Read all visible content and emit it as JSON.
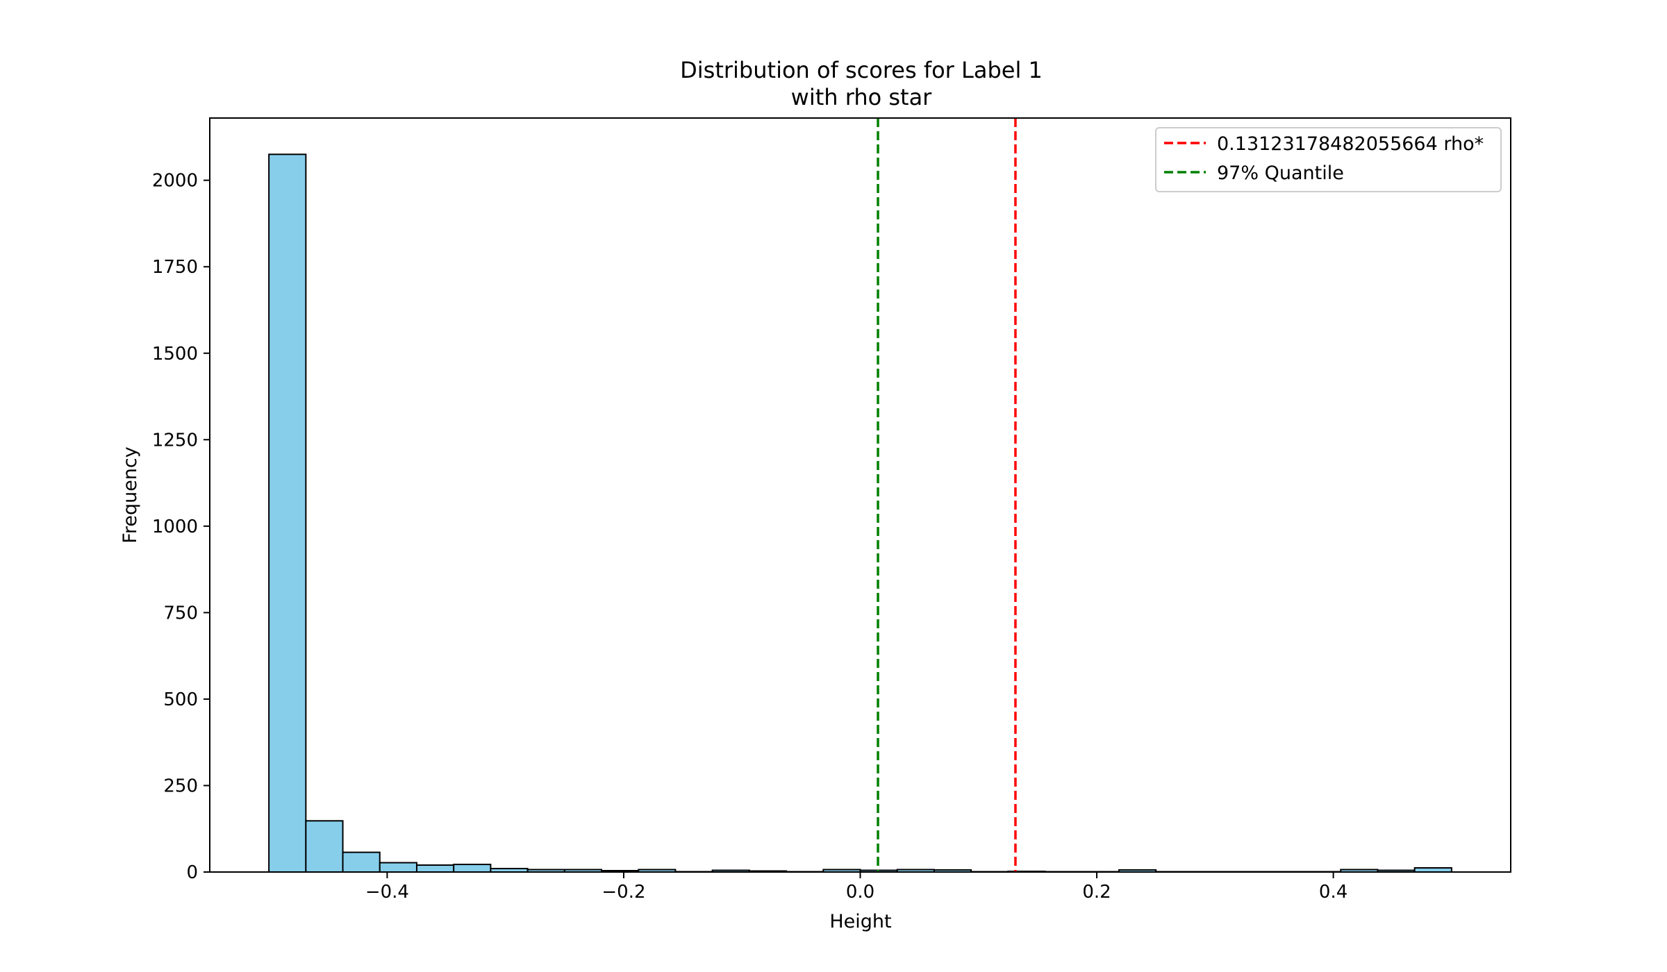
{
  "chart_data": {
    "type": "bar",
    "title": "Distribution of scores for Label 1",
    "subtitle": "with rho star",
    "xlabel": "Height",
    "ylabel": "Frequency",
    "xlim": [
      -0.55,
      0.55
    ],
    "ylim": [
      0,
      2180
    ],
    "x_ticks": [
      -0.4,
      -0.2,
      0.0,
      0.2,
      0.4
    ],
    "x_tick_labels": [
      "−0.4",
      "−0.2",
      "0.0",
      "0.2",
      "0.4"
    ],
    "y_ticks": [
      0,
      250,
      500,
      750,
      1000,
      1250,
      1500,
      1750,
      2000
    ],
    "y_tick_labels": [
      "0",
      "250",
      "500",
      "750",
      "1000",
      "1250",
      "1500",
      "1750",
      "2000"
    ],
    "bins": {
      "start": -0.5,
      "end": 0.5,
      "counts": [
        2075,
        148,
        57,
        27,
        20,
        22,
        10,
        7,
        7,
        4,
        7,
        1,
        5,
        3,
        1,
        7,
        5,
        7,
        6,
        1,
        2,
        1,
        1,
        6,
        1,
        1,
        1,
        1,
        1,
        7,
        5,
        12
      ]
    },
    "bar_color": "#87ceeb",
    "bar_edge_color": "#000000",
    "vlines": [
      {
        "x": 0.13123178482055664,
        "color": "#ff0000",
        "label": "0.13123178482055664 rho*"
      },
      {
        "x": 0.015,
        "color": "#008000",
        "label": "97% Quantile"
      }
    ],
    "legend": {
      "position": "top-right",
      "entries": [
        {
          "label": "0.13123178482055664 rho*",
          "color": "#ff0000"
        },
        {
          "label": "97% Quantile",
          "color": "#008000"
        }
      ]
    },
    "grid": false
  }
}
